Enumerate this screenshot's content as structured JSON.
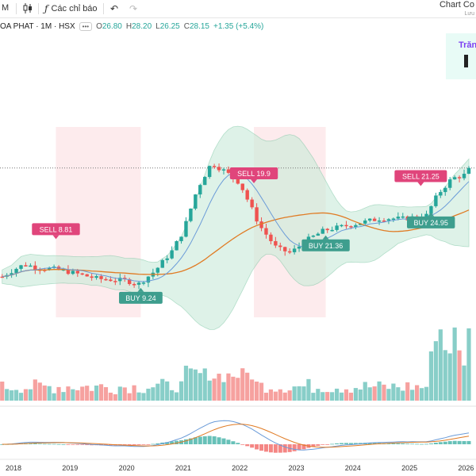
{
  "toolbar": {
    "interval": "M",
    "indicators_label": "Các chỉ báo",
    "right_title": "Chart Co",
    "right_sub": "Lưu"
  },
  "legend": {
    "symbol": "OA PHAT · 1M · HSX",
    "o_label": "O",
    "o": "26.80",
    "h_label": "H",
    "h": "28.20",
    "l_label": "L",
    "l": "26.25",
    "c_label": "C",
    "c": "28.15",
    "change": "+1.35 (+5.4%)"
  },
  "promo": {
    "text": "Trăn"
  },
  "colors": {
    "up": "#26a69a",
    "down": "#ef5350",
    "band_up": "#c9ebd9",
    "band_down": "#f5a3ae",
    "ma": "#e07b24",
    "signal_line": "#6a9bd8",
    "buy_badge": "#3e9e8e",
    "sell_badge": "#e0457b"
  },
  "chart_data": {
    "type": "candlestick",
    "title": "",
    "x_ticks": [
      "2018",
      "2019",
      "2020",
      "2021",
      "2022",
      "2023",
      "2024",
      "2025",
      "2026"
    ],
    "last_close": 28.15,
    "price_path": [
      {
        "t": 2017.8,
        "v": 9.0
      },
      {
        "t": 2018.0,
        "v": 10.2
      },
      {
        "t": 2018.2,
        "v": 11.2
      },
      {
        "t": 2018.4,
        "v": 10.6
      },
      {
        "t": 2018.75,
        "v": 10.3
      },
      {
        "t": 2019.0,
        "v": 9.8
      },
      {
        "t": 2019.5,
        "v": 8.6
      },
      {
        "t": 2020.0,
        "v": 8.3
      },
      {
        "t": 2020.2,
        "v": 7.6
      },
      {
        "t": 2020.5,
        "v": 10.0
      },
      {
        "t": 2020.8,
        "v": 13.5
      },
      {
        "t": 2021.0,
        "v": 17.0
      },
      {
        "t": 2021.25,
        "v": 24.5
      },
      {
        "t": 2021.5,
        "v": 29.0
      },
      {
        "t": 2021.75,
        "v": 27.5
      },
      {
        "t": 2022.0,
        "v": 25.5
      },
      {
        "t": 2022.35,
        "v": 18.0
      },
      {
        "t": 2022.65,
        "v": 14.0
      },
      {
        "t": 2022.9,
        "v": 13.2
      },
      {
        "t": 2023.2,
        "v": 15.5
      },
      {
        "t": 2023.5,
        "v": 17.2
      },
      {
        "t": 2024.0,
        "v": 18.2
      },
      {
        "t": 2024.5,
        "v": 19.3
      },
      {
        "t": 2024.9,
        "v": 19.2
      },
      {
        "t": 2025.3,
        "v": 19.8
      },
      {
        "t": 2025.5,
        "v": 23.5
      },
      {
        "t": 2025.75,
        "v": 26.3
      },
      {
        "t": 2026.0,
        "v": 27.0
      },
      {
        "t": 2026.08,
        "v": 28.15
      }
    ],
    "signals": [
      {
        "label": "SELL 8.81",
        "type": "sell",
        "t": 2018.75
      },
      {
        "label": "BUY 9.24",
        "type": "buy",
        "t": 2020.25
      },
      {
        "label": "SELL 19.9",
        "type": "sell",
        "t": 2022.25
      },
      {
        "label": "BUY 21.36",
        "type": "buy",
        "t": 2023.52
      },
      {
        "label": "SELL 21.25",
        "type": "sell",
        "t": 2025.2
      },
      {
        "label": "BUY 24.95",
        "type": "buy",
        "t": 2025.38
      }
    ],
    "sell_zones": [
      {
        "from": 2018.75,
        "to": 2020.25
      },
      {
        "from": 2022.25,
        "to": 2023.52
      }
    ]
  }
}
